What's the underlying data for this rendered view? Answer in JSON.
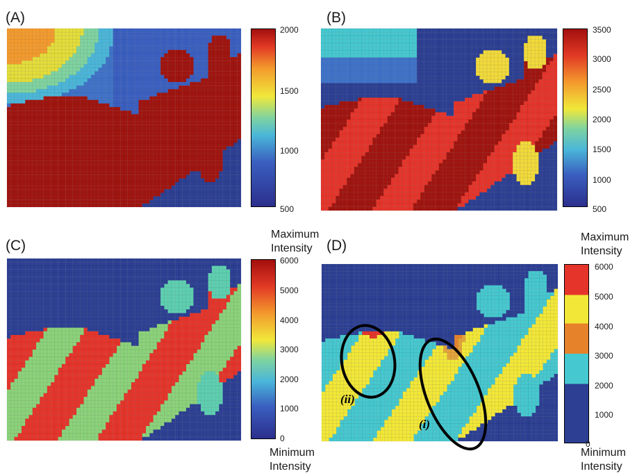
{
  "chart_data": [
    {
      "type": "heatmap",
      "panel_label": "(A)",
      "colorbar": {
        "ticks": [
          "2000",
          "1500",
          "1000",
          "500"
        ],
        "range": [
          500,
          2000
        ]
      }
    },
    {
      "type": "heatmap",
      "panel_label": "(B)",
      "colorbar": {
        "ticks": [
          "3500",
          "3000",
          "2500",
          "2000",
          "1500",
          "1000",
          "500"
        ],
        "range": [
          500,
          3500
        ]
      }
    },
    {
      "type": "heatmap",
      "panel_label": "(C)",
      "colorbar": {
        "ticks": [
          "6000",
          "5000",
          "4000",
          "3000",
          "2000",
          "1000",
          "0"
        ],
        "range": [
          0,
          6000
        ]
      },
      "top_note": "Maximum\nIntensity",
      "bottom_note": "Minimum\nIntensity"
    },
    {
      "type": "heatmap",
      "panel_label": "(D)",
      "colorbar": {
        "ticks": [
          "6000",
          "5000",
          "4000",
          "3000",
          "2000",
          "1000",
          "0"
        ],
        "range": [
          0,
          6000
        ],
        "discrete": true
      },
      "top_note": "Maximum\nIntensity",
      "bottom_note": "Minimum\nIntensity",
      "annotations": [
        "(ii)",
        "(i)"
      ]
    }
  ],
  "colors": {
    "dark_blue": "#2c3f93",
    "blue": "#3e72c8",
    "cyan": "#45c8cf",
    "yellow": "#f2e737",
    "orange": "#e6822a",
    "red": "#e5342a",
    "dark_red": "#a0140f",
    "green": "#8bd27a"
  }
}
